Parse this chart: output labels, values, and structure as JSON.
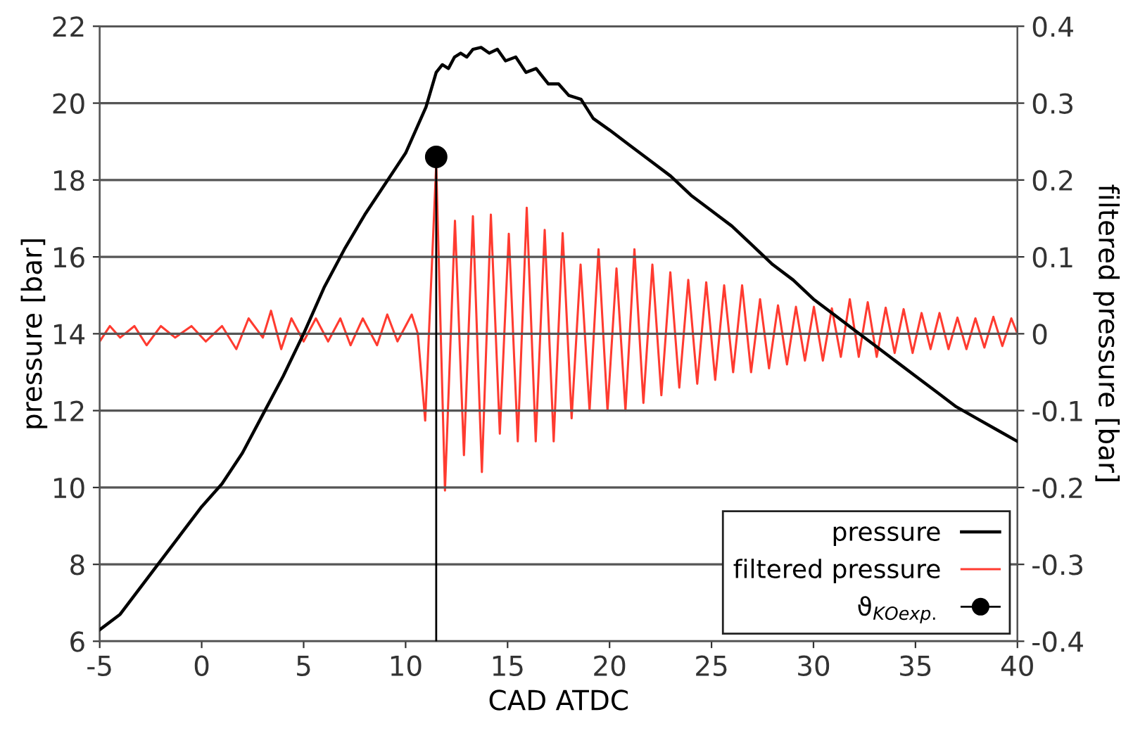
{
  "chart_data": {
    "type": "line",
    "xlabel": "CAD ATDC",
    "ylabel": "pressure [bar]",
    "y2label": "filtered pressure [bar]",
    "xlim": [
      -5,
      40
    ],
    "xticks": [
      -5,
      0,
      5,
      10,
      15,
      20,
      25,
      30,
      35,
      40
    ],
    "ylim": [
      6,
      22
    ],
    "yticks": [
      6,
      8,
      10,
      12,
      14,
      16,
      18,
      20,
      22
    ],
    "y2lim": [
      -0.4,
      0.4
    ],
    "y2ticks": [
      -0.4,
      -0.3,
      -0.2,
      -0.1,
      0,
      0.1,
      0.2,
      0.3,
      0.4
    ],
    "grid": "y",
    "legend": "bottom right",
    "series": [
      {
        "name": "pressure",
        "color": "#000000",
        "x": [
          -5,
          -4,
          -3,
          -2,
          -1,
          0,
          1,
          2,
          3,
          4,
          5,
          6,
          7,
          8,
          9,
          10,
          10.5,
          11,
          11.5,
          11.8,
          12.1,
          12.4,
          12.7,
          13,
          13.3,
          13.7,
          14.1,
          14.5,
          14.9,
          15.4,
          15.9,
          16.4,
          17,
          17.5,
          18,
          18.6,
          19.2,
          20,
          21,
          22,
          23,
          24,
          25,
          26,
          27,
          28,
          29,
          30,
          31,
          32,
          33,
          34,
          35,
          36,
          37,
          38,
          39,
          40
        ],
        "values": [
          6.3,
          6.7,
          7.4,
          8.1,
          8.8,
          9.5,
          10.1,
          10.9,
          11.9,
          12.9,
          14.0,
          15.2,
          16.2,
          17.1,
          17.9,
          18.7,
          19.3,
          19.9,
          20.8,
          21.0,
          20.9,
          21.2,
          21.3,
          21.2,
          21.4,
          21.45,
          21.3,
          21.4,
          21.1,
          21.2,
          20.8,
          20.9,
          20.5,
          20.5,
          20.2,
          20.1,
          19.6,
          19.3,
          18.9,
          18.5,
          18.1,
          17.6,
          17.2,
          16.8,
          16.3,
          15.8,
          15.4,
          14.9,
          14.5,
          14.1,
          13.7,
          13.3,
          12.9,
          12.5,
          12.1,
          11.8,
          11.5,
          11.2
        ]
      },
      {
        "name": "filtered pressure",
        "color": "#ff3b30",
        "axis": "y2",
        "x": [
          -5,
          -4.5,
          -4,
          -3.3,
          -2.7,
          -2,
          -1.3,
          -0.5,
          0.2,
          1,
          1.7,
          2.3,
          3,
          3.4,
          3.9,
          4.4,
          5,
          5.6,
          6.2,
          6.8,
          7.3,
          7.9,
          8.6,
          9.1,
          9.6,
          10.3,
          10.6,
          10.96,
          11.5,
          11.93,
          12.42,
          12.86,
          13.3,
          13.74,
          14.18,
          14.62,
          15.06,
          15.5,
          15.94,
          16.38,
          16.82,
          17.26,
          17.7,
          18.14,
          18.58,
          19.02,
          19.46,
          19.9,
          20.34,
          20.78,
          21.22,
          21.66,
          22.1,
          22.54,
          22.98,
          23.42,
          23.86,
          24.3,
          24.74,
          25.18,
          25.62,
          26.06,
          26.5,
          26.94,
          27.38,
          27.82,
          28.26,
          28.7,
          29.14,
          29.58,
          30.02,
          30.46,
          30.9,
          31.34,
          31.78,
          32.22,
          32.66,
          33.1,
          33.54,
          33.98,
          34.42,
          34.86,
          35.3,
          35.74,
          36.18,
          36.62,
          37.06,
          37.5,
          37.94,
          38.38,
          38.82,
          39.26,
          39.7,
          40
        ],
        "values": [
          -0.01,
          0.01,
          -0.005,
          0.01,
          -0.015,
          0.01,
          -0.005,
          0.01,
          -0.01,
          0.01,
          -0.02,
          0.02,
          -0.005,
          0.03,
          -0.02,
          0.02,
          -0.01,
          0.02,
          -0.01,
          0.02,
          -0.015,
          0.02,
          -0.015,
          0.025,
          -0.01,
          0.025,
          0.0,
          -0.113,
          0.22,
          -0.204,
          0.147,
          -0.158,
          0.153,
          -0.18,
          0.155,
          -0.13,
          0.13,
          -0.14,
          0.164,
          -0.14,
          0.135,
          -0.14,
          0.131,
          -0.11,
          0.09,
          -0.1,
          0.11,
          -0.1,
          0.085,
          -0.1,
          0.11,
          -0.09,
          0.09,
          -0.08,
          0.08,
          -0.07,
          0.07,
          -0.065,
          0.067,
          -0.06,
          0.063,
          -0.05,
          0.063,
          -0.05,
          0.045,
          -0.045,
          0.037,
          -0.04,
          0.035,
          -0.035,
          0.035,
          -0.035,
          0.033,
          -0.03,
          0.045,
          -0.03,
          0.041,
          -0.03,
          0.034,
          -0.025,
          0.032,
          -0.025,
          0.027,
          -0.02,
          0.027,
          -0.02,
          0.021,
          -0.02,
          0.02,
          -0.018,
          0.022,
          -0.016,
          0.02,
          0.0
        ]
      },
      {
        "name": "ϑ$_{KOexp.}$",
        "type": "lollipop",
        "color": "#000000",
        "marker": "circle",
        "x": [
          11.5
        ],
        "values": [
          18.6
        ]
      }
    ]
  }
}
